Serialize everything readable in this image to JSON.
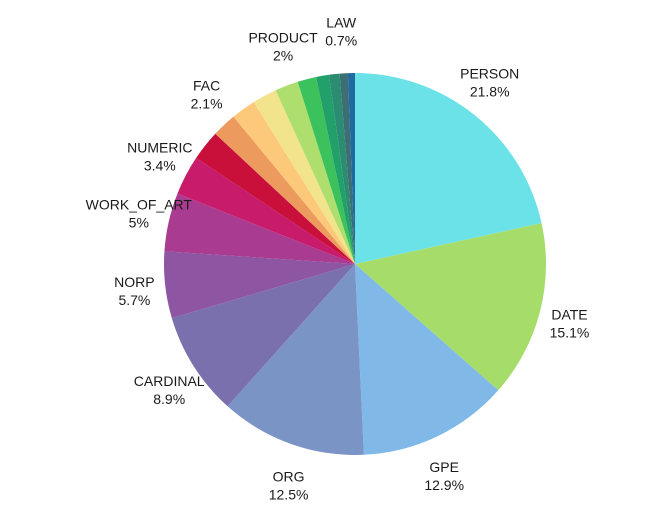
{
  "chart_data": {
    "type": "pie",
    "title": "",
    "start_angle_deg": 0,
    "direction": "clockwise",
    "slices": [
      {
        "label": "PERSON",
        "pct_text": "21.8%",
        "value": 21.8,
        "color": "#6ae2e8"
      },
      {
        "label": "DATE",
        "pct_text": "15.1%",
        "value": 15.1,
        "color": "#a6dc6a"
      },
      {
        "label": "GPE",
        "pct_text": "12.9%",
        "value": 12.9,
        "color": "#80b9e8"
      },
      {
        "label": "ORG",
        "pct_text": "12.5%",
        "value": 12.5,
        "color": "#7b94c6"
      },
      {
        "label": "CARDINAL",
        "pct_text": "8.9%",
        "value": 8.9,
        "color": "#7a70ad"
      },
      {
        "label": "NORP",
        "pct_text": "5.7%",
        "value": 5.7,
        "color": "#8e55a2"
      },
      {
        "label": "WORK_OF_ART",
        "pct_text": "5%",
        "value": 5.0,
        "color": "#a93b91"
      },
      {
        "label": "NUMERIC",
        "pct_text": "3.4%",
        "value": 3.4,
        "color": "#c81b6b"
      },
      {
        "label": "",
        "pct_text": "",
        "value": 2.6,
        "color": "#c8103a"
      },
      {
        "label": "FAC",
        "pct_text": "2.1%",
        "value": 2.1,
        "color": "#ec9a5e"
      },
      {
        "label": "",
        "pct_text": "",
        "value": 2.1,
        "color": "#fcc97a"
      },
      {
        "label": "",
        "pct_text": "",
        "value": 2.1,
        "color": "#f2e48c"
      },
      {
        "label": "PRODUCT",
        "pct_text": "2%",
        "value": 2.0,
        "color": "#aede6e"
      },
      {
        "label": "",
        "pct_text": "",
        "value": 1.6,
        "color": "#3cc25c"
      },
      {
        "label": "",
        "pct_text": "",
        "value": 1.1,
        "color": "#22a06a"
      },
      {
        "label": "",
        "pct_text": "",
        "value": 0.9,
        "color": "#2b8c72"
      },
      {
        "label": "LAW",
        "pct_text": "0.7%",
        "value": 0.7,
        "color": "#3d6e74"
      },
      {
        "label": "",
        "pct_text": "",
        "value": 0.6,
        "color": "#1f6aa0"
      }
    ]
  }
}
